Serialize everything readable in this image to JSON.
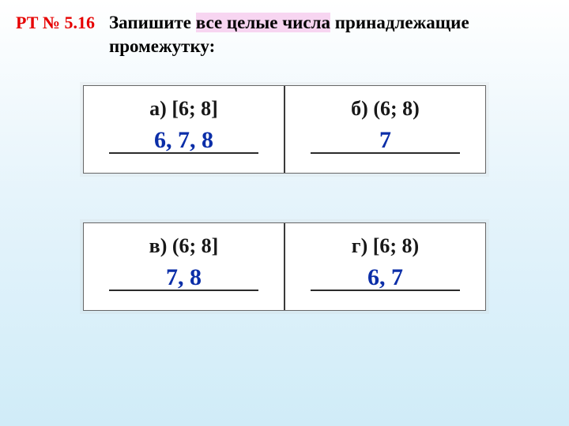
{
  "header": {
    "label": "РТ № 5.16",
    "prompt_before": "Запишите ",
    "prompt_highlight": "все целые числа",
    "prompt_after": " принадлежащие промежутку:"
  },
  "rows": [
    {
      "left": {
        "label": "а) [6; 8]",
        "answer": "6,  7,  8"
      },
      "right": {
        "label": "б) (6; 8)",
        "answer": "7"
      }
    },
    {
      "left": {
        "label": "в) (6; 8]",
        "answer": "7,  8"
      },
      "right": {
        "label": "г) [6; 8)",
        "answer": "6,  7"
      }
    }
  ],
  "colors": {
    "label_color": "#e60000",
    "answer_color": "#0b2ea8",
    "highlight_bg": "#f7d5f1"
  }
}
